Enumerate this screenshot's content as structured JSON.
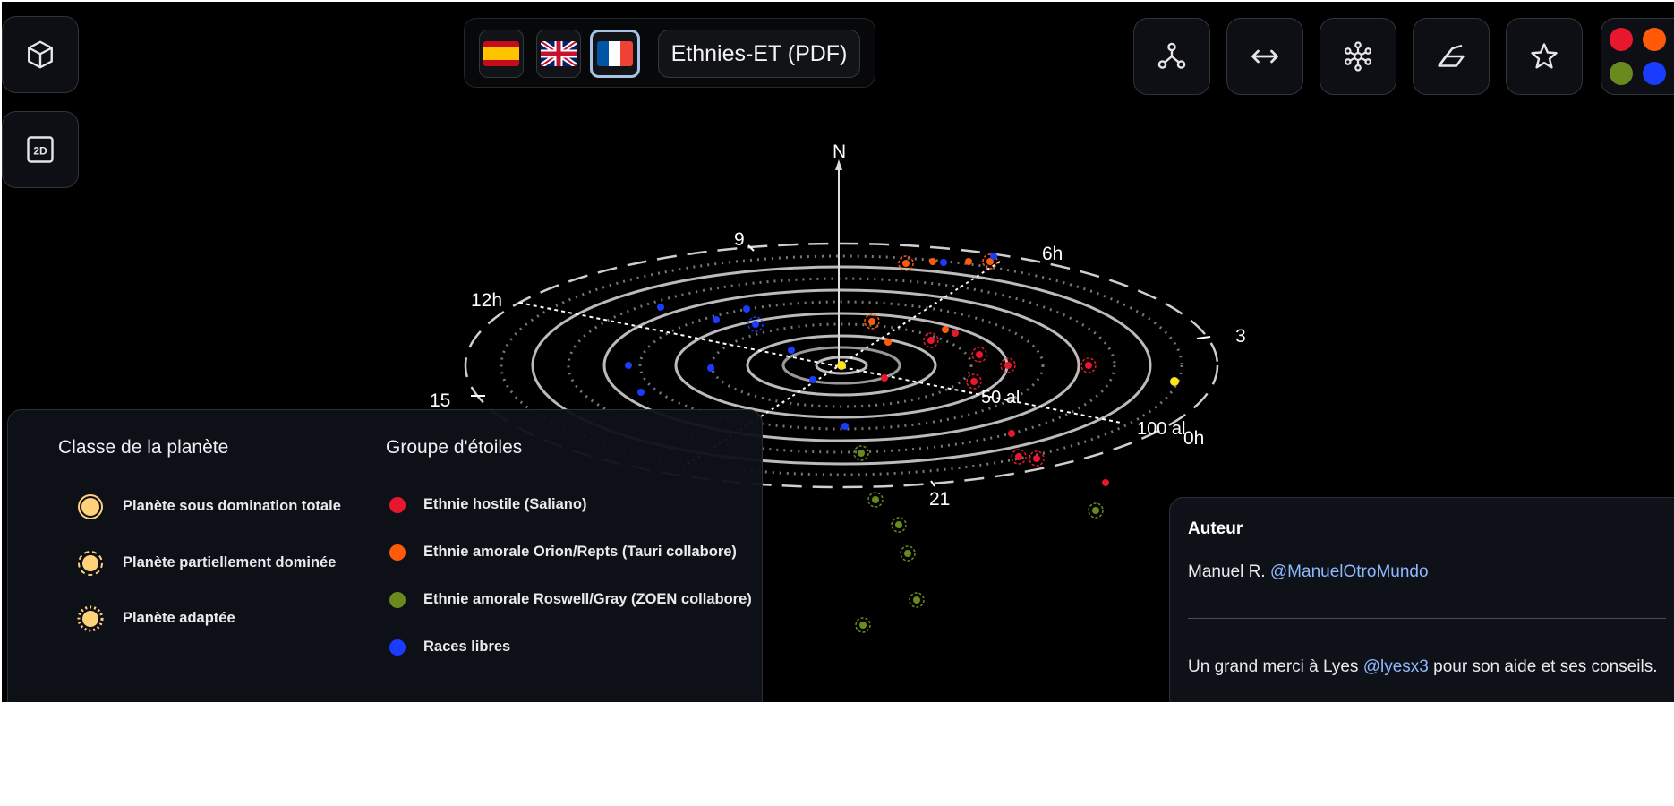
{
  "toolbar_left": [
    {
      "name": "view-3d-icon"
    },
    {
      "name": "view-2d-icon"
    }
  ],
  "languages": [
    {
      "name": "spanish-flag-icon",
      "active": false
    },
    {
      "name": "uk-flag-icon",
      "active": false
    },
    {
      "name": "french-flag-icon",
      "active": true
    }
  ],
  "pdf_button_label": "Ethnies-ET (PDF)",
  "toolbar_right": [
    {
      "name": "network-graph-icon"
    },
    {
      "name": "horizontal-arrows-icon"
    },
    {
      "name": "hub-network-icon"
    },
    {
      "name": "surface-plane-icon"
    },
    {
      "name": "star-icon"
    }
  ],
  "palette_colors": [
    "#e8172d",
    "#ff5a0a",
    "#6a8a1d",
    "#1a3cff"
  ],
  "map": {
    "north_label": "N",
    "hour_labels": [
      "9",
      "6h",
      "12h",
      "3",
      "15",
      "0h",
      "21"
    ],
    "distance_labels": [
      "50 al",
      "100 al"
    ]
  },
  "legend": {
    "planet_class_title": "Classe de la planète",
    "planet_classes": [
      {
        "label": "Planète sous domination totale",
        "icon": "planet-total-domination-icon"
      },
      {
        "label": "Planète partiellement dominée",
        "icon": "planet-partial-domination-icon"
      },
      {
        "label": "Planète adaptée",
        "icon": "planet-adapted-icon"
      }
    ],
    "star_group_title": "Groupe d'étoiles",
    "star_groups": [
      {
        "label": "Ethnie hostile (Saliano)",
        "color": "#e8172d"
      },
      {
        "label": "Ethnie amorale Orion/Repts (Tauri collabore)",
        "color": "#ff5a0a"
      },
      {
        "label": "Ethnie amorale Roswell/Gray (ZOEN collabore)",
        "color": "#6a8a1d"
      },
      {
        "label": "Races libres",
        "color": "#1a3cff"
      }
    ]
  },
  "credits": {
    "title": "Auteur",
    "author_name": "Manuel R.",
    "author_handle": "@ManuelOtroMundo",
    "thanks_prefix": "Un grand merci à Lyes",
    "thanks_handle": "@lyesx3",
    "thanks_suffix": "pour son aide et ses conseils."
  }
}
